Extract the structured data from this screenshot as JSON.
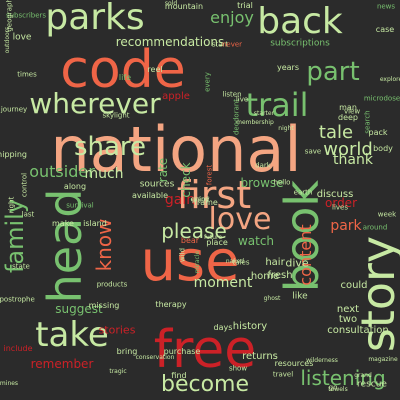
{
  "cloud": {
    "background": "#2b2b2b",
    "palette": {
      "red": "#cc2127",
      "dark_red": "#a4161c",
      "orange": "#ef6547",
      "salmon": "#f4a582",
      "light_green": "#c7e9a3",
      "mid_green": "#78c16f",
      "green": "#3f9d4f",
      "dark_green": "#1f6b33"
    },
    "words": [
      {
        "text": "national",
        "size": 62,
        "color": "#f4a582",
        "rot": 0
      },
      {
        "text": "code",
        "size": 52,
        "color": "#ef6547",
        "rot": 0
      },
      {
        "text": "use",
        "size": 56,
        "color": "#ef6547",
        "rot": 0
      },
      {
        "text": "free",
        "size": 52,
        "color": "#cc2127",
        "rot": 0
      },
      {
        "text": "book",
        "size": 46,
        "color": "#78c16f",
        "rot": -90
      },
      {
        "text": "story",
        "size": 46,
        "color": "#c7e9a3",
        "rot": -90
      },
      {
        "text": "head",
        "size": 46,
        "color": "#78c16f",
        "rot": -90
      },
      {
        "text": "parks",
        "size": 36,
        "color": "#c7e9a3",
        "rot": 0
      },
      {
        "text": "back",
        "size": 36,
        "color": "#c7e9a3",
        "rot": 0
      },
      {
        "text": "first",
        "size": 38,
        "color": "#f4a582",
        "rot": 0
      },
      {
        "text": "take",
        "size": 34,
        "color": "#c7e9a3",
        "rot": 0
      },
      {
        "text": "wherever",
        "size": 28,
        "color": "#c7e9a3",
        "rot": 0
      },
      {
        "text": "trail",
        "size": 32,
        "color": "#78c16f",
        "rot": 0
      },
      {
        "text": "love",
        "size": 30,
        "color": "#f4a582",
        "rot": 0
      },
      {
        "text": "share",
        "size": 26,
        "color": "#c7e9a3",
        "rot": 0
      },
      {
        "text": "part",
        "size": 26,
        "color": "#78c16f",
        "rot": 0
      },
      {
        "text": "family",
        "size": 24,
        "color": "#78c16f",
        "rot": -90
      },
      {
        "text": "become",
        "size": 22,
        "color": "#c7e9a3",
        "rot": 0
      },
      {
        "text": "listening",
        "size": 20,
        "color": "#78c16f",
        "rot": 0
      },
      {
        "text": "please",
        "size": 20,
        "color": "#c7e9a3",
        "rot": 0
      },
      {
        "text": "know",
        "size": 20,
        "color": "#ef6547",
        "rot": -90
      },
      {
        "text": "content",
        "size": 16,
        "color": "#ef6547",
        "rot": -90
      },
      {
        "text": "enjoy",
        "size": 16,
        "color": "#78c16f",
        "rot": 0
      },
      {
        "text": "world",
        "size": 18,
        "color": "#c7e9a3",
        "rot": 0
      },
      {
        "text": "tale",
        "size": 18,
        "color": "#c7e9a3",
        "rot": 0
      },
      {
        "text": "thank",
        "size": 14,
        "color": "#c7e9a3",
        "rot": 0
      },
      {
        "text": "outsider",
        "size": 16,
        "color": "#78c16f",
        "rot": 0
      },
      {
        "text": "much",
        "size": 14,
        "color": "#c7e9a3",
        "rot": 0
      },
      {
        "text": "recommendations",
        "size": 12,
        "color": "#c7e9a3",
        "rot": 0
      },
      {
        "text": "moment",
        "size": 14,
        "color": "#c7e9a3",
        "rot": 0
      },
      {
        "text": "remember",
        "size": 12,
        "color": "#cc2127",
        "rot": 0
      },
      {
        "text": "stories",
        "size": 11,
        "color": "#cc2127",
        "rot": 0
      },
      {
        "text": "suggest",
        "size": 12,
        "color": "#78c16f",
        "rot": 0
      },
      {
        "text": "park",
        "size": 14,
        "color": "#ef6547",
        "rot": 0
      },
      {
        "text": "watch",
        "size": 12,
        "color": "#78c16f",
        "rot": 0
      },
      {
        "text": "gain",
        "size": 14,
        "color": "#cc2127",
        "rot": 0
      },
      {
        "text": "history",
        "size": 10,
        "color": "#c7e9a3",
        "rot": 0
      },
      {
        "text": "browse",
        "size": 12,
        "color": "#78c16f",
        "rot": 0
      },
      {
        "text": "check",
        "size": 12,
        "color": "#78c16f",
        "rot": -90
      },
      {
        "text": "order",
        "size": 12,
        "color": "#cc2127",
        "rot": 0
      },
      {
        "text": "dive",
        "size": 11,
        "color": "#c7e9a3",
        "rot": 0
      },
      {
        "text": "home",
        "size": 10,
        "color": "#c7e9a3",
        "rot": 0
      },
      {
        "text": "could",
        "size": 10,
        "color": "#c7e9a3",
        "rot": 0
      },
      {
        "text": "apple",
        "size": 10,
        "color": "#cc2127",
        "rot": 0
      },
      {
        "text": "rate",
        "size": 12,
        "color": "#78c16f",
        "rot": -90
      },
      {
        "text": "hair",
        "size": 10,
        "color": "#c7e9a3",
        "rot": 0
      },
      {
        "text": "fresh",
        "size": 10,
        "color": "#c7e9a3",
        "rot": 0
      },
      {
        "text": "returns",
        "size": 10,
        "color": "#c7e9a3",
        "rot": 0
      },
      {
        "text": "rescue",
        "size": 9,
        "color": "#c7e9a3",
        "rot": 0
      },
      {
        "text": "consultation",
        "size": 10,
        "color": "#c7e9a3",
        "rot": 0
      },
      {
        "text": "next",
        "size": 10,
        "color": "#c7e9a3",
        "rot": 0
      },
      {
        "text": "two",
        "size": 10,
        "color": "#c7e9a3",
        "rot": 0
      },
      {
        "text": "like",
        "size": 9,
        "color": "#c7e9a3",
        "rot": 0
      },
      {
        "text": "discuss",
        "size": 10,
        "color": "#c7e9a3",
        "rot": 0
      },
      {
        "text": "subscriptions",
        "size": 9,
        "color": "#78c16f",
        "rot": 0
      },
      {
        "text": "mountain",
        "size": 8,
        "color": "#c7e9a3",
        "rot": 0
      },
      {
        "text": "trial",
        "size": 8,
        "color": "#c7e9a3",
        "rot": 0
      },
      {
        "text": "subscribers",
        "size": 7,
        "color": "#78c16f",
        "rot": 0
      },
      {
        "text": "news",
        "size": 7,
        "color": "#78c16f",
        "rot": 0
      },
      {
        "text": "start",
        "size": 7,
        "color": "#c7e9a3",
        "rot": 0
      },
      {
        "text": "never",
        "size": 7,
        "color": "#ef6547",
        "rot": 0
      },
      {
        "text": "reel",
        "size": 8,
        "color": "#c7e9a3",
        "rot": 0
      },
      {
        "text": "life",
        "size": 8,
        "color": "#78c16f",
        "rot": 0
      },
      {
        "text": "search",
        "size": 7,
        "color": "#78c16f",
        "rot": -90
      },
      {
        "text": "years",
        "size": 8,
        "color": "#c7e9a3",
        "rot": 0
      },
      {
        "text": "man",
        "size": 8,
        "color": "#c7e9a3",
        "rot": 0
      },
      {
        "text": "deep",
        "size": 8,
        "color": "#c7e9a3",
        "rot": 0
      },
      {
        "text": "pack",
        "size": 8,
        "color": "#c7e9a3",
        "rot": 0
      },
      {
        "text": "body",
        "size": 8,
        "color": "#c7e9a3",
        "rot": 0
      },
      {
        "text": "week",
        "size": 7,
        "color": "#c7e9a3",
        "rot": 0
      },
      {
        "text": "survival",
        "size": 7,
        "color": "#78c16f",
        "rot": 0
      },
      {
        "text": "along",
        "size": 8,
        "color": "#c7e9a3",
        "rot": 0
      },
      {
        "text": "sources",
        "size": 9,
        "color": "#c7e9a3",
        "rot": 0
      },
      {
        "text": "available",
        "size": 8,
        "color": "#c7e9a3",
        "rot": 0
      },
      {
        "text": "frame",
        "size": 8,
        "color": "#c7e9a3",
        "rot": 0
      },
      {
        "text": "place",
        "size": 8,
        "color": "#c7e9a3",
        "rot": 0
      },
      {
        "text": "bear",
        "size": 8,
        "color": "#ef6547",
        "rot": 0
      },
      {
        "text": "island",
        "size": 8,
        "color": "#c7e9a3",
        "rot": 0
      },
      {
        "text": "make",
        "size": 8,
        "color": "#c7e9a3",
        "rot": 0
      },
      {
        "text": "products",
        "size": 7,
        "color": "#c7e9a3",
        "rot": 0
      },
      {
        "text": "missing",
        "size": 8,
        "color": "#c7e9a3",
        "rot": 0
      },
      {
        "text": "therapy",
        "size": 8,
        "color": "#c7e9a3",
        "rot": 0
      },
      {
        "text": "bring",
        "size": 8,
        "color": "#c7e9a3",
        "rot": 0
      },
      {
        "text": "purchase",
        "size": 8,
        "color": "#c7e9a3",
        "rot": 0
      },
      {
        "text": "find",
        "size": 8,
        "color": "#c7e9a3",
        "rot": 0
      },
      {
        "text": "show",
        "size": 7,
        "color": "#c7e9a3",
        "rot": 0
      },
      {
        "text": "resources",
        "size": 8,
        "color": "#c7e9a3",
        "rot": 0
      },
      {
        "text": "include",
        "size": 8,
        "color": "#cc2127",
        "rot": 0
      },
      {
        "text": "days",
        "size": 8,
        "color": "#c7e9a3",
        "rot": 0
      },
      {
        "text": "love",
        "size": 9,
        "color": "#c7e9a3",
        "rot": 0
      },
      {
        "text": "times",
        "size": 7,
        "color": "#c7e9a3",
        "rot": 0
      },
      {
        "text": "journey",
        "size": 7,
        "color": "#c7e9a3",
        "rot": 0
      },
      {
        "text": "skylight",
        "size": 7,
        "color": "#c7e9a3",
        "rot": 0
      },
      {
        "text": "shipping",
        "size": 8,
        "color": "#c7e9a3",
        "rot": 0
      },
      {
        "text": "control",
        "size": 7,
        "color": "#c7e9a3",
        "rot": -90
      },
      {
        "text": "apostrophe",
        "size": 7,
        "color": "#c7e9a3",
        "rot": 0
      },
      {
        "text": "state",
        "size": 7,
        "color": "#c7e9a3",
        "rot": 0
      },
      {
        "text": "deodorant",
        "size": 7,
        "color": "#78c16f",
        "rot": -90
      },
      {
        "text": "ghost",
        "size": 6,
        "color": "#c7e9a3",
        "rot": 0
      },
      {
        "text": "case",
        "size": 8,
        "color": "#c7e9a3",
        "rot": 0
      },
      {
        "text": "view",
        "size": 7,
        "color": "#c7e9a3",
        "rot": 0
      },
      {
        "text": "save",
        "size": 7,
        "color": "#c7e9a3",
        "rot": 0
      },
      {
        "text": "hello",
        "size": 7,
        "color": "#c7e9a3",
        "rot": 0
      },
      {
        "text": "dark",
        "size": 7,
        "color": "#c7e9a3",
        "rot": 0
      },
      {
        "text": "earth",
        "size": 7,
        "color": "#c7e9a3",
        "rot": 0
      },
      {
        "text": "lives",
        "size": 7,
        "color": "#c7e9a3",
        "rot": 0
      },
      {
        "text": "grand",
        "size": 6,
        "color": "#c7e9a3",
        "rot": 0
      },
      {
        "text": "microdose",
        "size": 7,
        "color": "#78c16f",
        "rot": 0
      },
      {
        "text": "explore",
        "size": 6,
        "color": "#c7e9a3",
        "rot": 0
      },
      {
        "text": "outdoors",
        "size": 6,
        "color": "#c7e9a3",
        "rot": -90
      },
      {
        "text": "forest",
        "size": 7,
        "color": "#ef6547",
        "rot": -90
      },
      {
        "text": "geographic",
        "size": 7,
        "color": "#c7e9a3",
        "rot": -90
      },
      {
        "text": "wild",
        "size": 7,
        "color": "#c7e9a3",
        "rot": -90
      },
      {
        "text": "travel",
        "size": 7,
        "color": "#c7e9a3",
        "rot": 0
      },
      {
        "text": "wilderness",
        "size": 6,
        "color": "#c7e9a3",
        "rot": 0
      },
      {
        "text": "magazine",
        "size": 6,
        "color": "#c7e9a3",
        "rot": 0
      },
      {
        "text": "towels",
        "size": 6,
        "color": "#c7e9a3",
        "rot": 0
      },
      {
        "text": "tragic",
        "size": 6,
        "color": "#c7e9a3",
        "rot": 0
      },
      {
        "text": "mines",
        "size": 6,
        "color": "#c7e9a3",
        "rot": 0
      },
      {
        "text": "conservation",
        "size": 6,
        "color": "#c7e9a3",
        "rot": 0
      },
      {
        "text": "naked",
        "size": 6,
        "color": "#c7e9a3",
        "rot": 0
      },
      {
        "text": "future",
        "size": 6,
        "color": "#c7e9a3",
        "rot": 0
      },
      {
        "text": "tales",
        "size": 7,
        "color": "#c7e9a3",
        "rot": 0
      },
      {
        "text": "miracle",
        "size": 6,
        "color": "#78c16f",
        "rot": -90
      },
      {
        "text": "membership",
        "size": 6,
        "color": "#c7e9a3",
        "rot": 0
      },
      {
        "text": "starter",
        "size": 6,
        "color": "#c7e9a3",
        "rot": 0
      },
      {
        "text": "right",
        "size": 7,
        "color": "#c7e9a3",
        "rot": -90
      },
      {
        "text": "last",
        "size": 7,
        "color": "#c7e9a3",
        "rot": 0
      },
      {
        "text": "listen",
        "size": 7,
        "color": "#c7e9a3",
        "rot": 0
      },
      {
        "text": "night",
        "size": 6,
        "color": "#c7e9a3",
        "rot": 0
      },
      {
        "text": "live",
        "size": 7,
        "color": "#c7e9a3",
        "rot": 0
      },
      {
        "text": "around",
        "size": 7,
        "color": "#78c16f",
        "rot": 0
      },
      {
        "text": "every",
        "size": 7,
        "color": "#78c16f",
        "rot": -90
      },
      {
        "text": "go",
        "size": 7,
        "color": "#c7e9a3",
        "rot": 0
      },
      {
        "text": "sold",
        "size": 6,
        "color": "#c7e9a3",
        "rot": 0
      },
      {
        "text": "grand",
        "size": 6,
        "color": "#c7e9a3",
        "rot": 0
      },
      {
        "text": "enjoy",
        "size": 7,
        "color": "#c7e9a3",
        "rot": 0
      }
    ]
  }
}
